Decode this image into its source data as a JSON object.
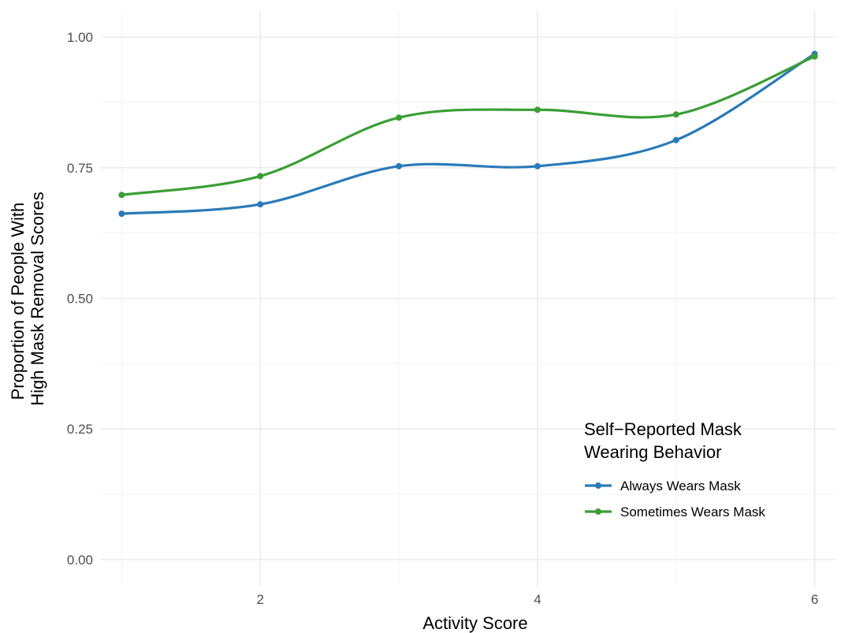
{
  "chart_data": {
    "type": "line",
    "title": "",
    "xlabel": "Activity Score",
    "ylabel_lines": [
      "Proportion of People With",
      "High Mask Removal Scores"
    ],
    "xlim": [
      0.85,
      6.15
    ],
    "ylim": [
      -0.05,
      1.05
    ],
    "x_ticks": [
      2,
      4,
      6
    ],
    "x_tick_labels": [
      "2",
      "4",
      "6"
    ],
    "y_ticks": [
      0,
      0.25,
      0.5,
      0.75,
      1.0
    ],
    "y_tick_labels": [
      "0.00",
      "0.25",
      "0.50",
      "0.75",
      "1.00"
    ],
    "grid": true,
    "smoothed": true,
    "legend": {
      "title_lines": [
        "Self−Reported Mask",
        "Wearing Behavior"
      ],
      "position": "bottom-right"
    },
    "series": [
      {
        "name": "Always Wears Mask",
        "color": "#2a7ab8",
        "x": [
          1,
          2,
          3,
          4,
          5,
          6
        ],
        "y": [
          0.662,
          0.68,
          0.753,
          0.753,
          0.803,
          0.968
        ]
      },
      {
        "name": "Sometimes Wears Mask",
        "color": "#3a9e35",
        "x": [
          1,
          2,
          3,
          4,
          5,
          6
        ],
        "y": [
          0.698,
          0.734,
          0.846,
          0.861,
          0.852,
          0.963
        ]
      }
    ]
  }
}
